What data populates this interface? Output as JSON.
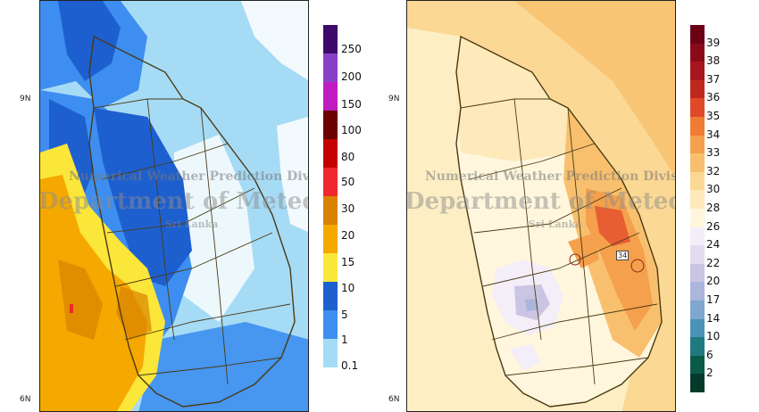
{
  "rainfall_panel": {
    "lat_labels": [
      "9N",
      "6N"
    ],
    "colorbar": {
      "labels": [
        "250",
        "200",
        "150",
        "100",
        "80",
        "50",
        "30",
        "20",
        "15",
        "10",
        "5",
        "1",
        "0.1"
      ],
      "colors": [
        "#3d0a6b",
        "#8a3fc9",
        "#c01bc0",
        "#6b0000",
        "#c40000",
        "#f0282d",
        "#d98200",
        "#f5a800",
        "#fbe63a",
        "#1e5fcf",
        "#3d8ef0",
        "#a4dcf7"
      ]
    },
    "watermark": {
      "line1": "Numerical Weather Prediction Division",
      "line2": "Department of Meteorology",
      "line3": "Sri Lanka"
    }
  },
  "temperature_panel": {
    "lat_labels": [
      "9N",
      "6N"
    ],
    "marker_value": "34",
    "colorbar": {
      "labels": [
        "39",
        "38",
        "37",
        "36",
        "35",
        "34",
        "33",
        "32",
        "30",
        "28",
        "26",
        "24",
        "22",
        "20",
        "17",
        "14",
        "10",
        "6",
        "2"
      ],
      "colors": [
        "#6b0014",
        "#8b0a1a",
        "#a8151e",
        "#c0281f",
        "#e0482a",
        "#f07b35",
        "#f5a04c",
        "#f8c06e",
        "#fbd893",
        "#fde9ba",
        "#fff6dd",
        "#f3eef8",
        "#e3dcef",
        "#cbc5e4",
        "#aab6dc",
        "#7fa7cf",
        "#4a93b7",
        "#1f7a7f",
        "#0a5a48",
        "#053a2b"
      ]
    },
    "watermark": {
      "line1": "Numerical Weather Prediction Division",
      "line2": "Department of Meteorology",
      "line3": "Sri Lanka"
    }
  }
}
